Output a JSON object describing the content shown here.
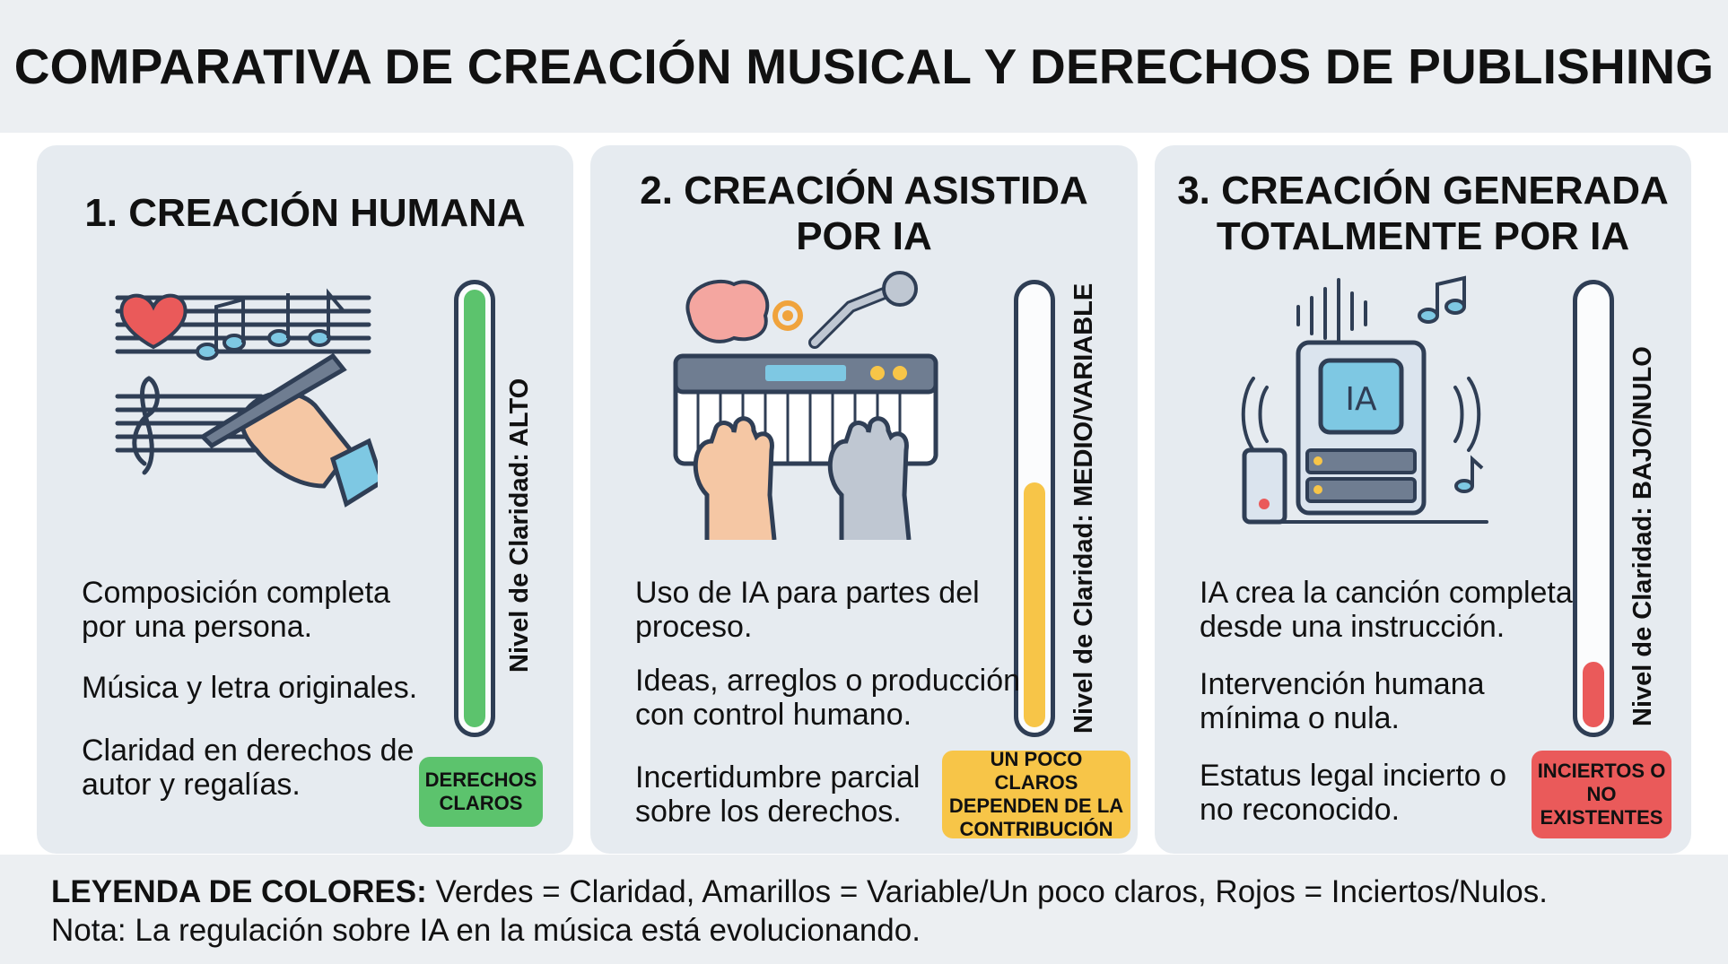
{
  "header": {
    "title": "COMPARATIVA DE CREACIÓN MUSICAL Y DERECHOS DE PUBLISHING"
  },
  "panels": [
    {
      "title_lines": [
        "1. CREACIÓN HUMANA"
      ],
      "illustration": "hand-writing-music-icon",
      "bullets": [
        "Composición completa",
        "por una persona.",
        "Música y letra originales.",
        "Claridad en derechos de",
        "autor y regalías."
      ],
      "gauge": {
        "label": "Nivel de Claridad: ALTO",
        "level": 1.0,
        "color": "#5cc36d"
      },
      "badge": {
        "lines": [
          "DERECHOS",
          "CLAROS"
        ],
        "color": "#5cc36d"
      }
    },
    {
      "title_lines": [
        "2. CREACIÓN ASISTIDA",
        "POR IA"
      ],
      "illustration": "human-and-robot-keyboard-icon",
      "bullets": [
        "Uso de IA para partes del",
        "proceso.",
        "Ideas, arreglos o producción",
        "con control humano.",
        "Incertidumbre parcial",
        "sobre los derechos."
      ],
      "gauge": {
        "label": "Nivel de Claridad: MEDIO/VARIABLE",
        "level": 0.56,
        "color": "#f7c548"
      },
      "badge": {
        "lines": [
          "UN POCO CLAROS",
          "DEPENDEN DE LA",
          "CONTRIBUCIÓN"
        ],
        "color": "#f7c548"
      }
    },
    {
      "title_lines": [
        "3. CREACIÓN GENERADA",
        "TOTALMENTE POR IA"
      ],
      "illustration": "ai-chip-computer-icon",
      "bullets": [
        "IA crea la canción completa",
        "desde una instrucción.",
        "Intervención humana",
        "mínima o nula.",
        "Estatus legal incierto o",
        "no reconocido."
      ],
      "gauge": {
        "label": "Nivel de Claridad: BAJO/NULO",
        "level": 0.15,
        "color": "#ea5a5a"
      },
      "badge": {
        "lines": [
          "INCIERTOS O",
          "NO",
          "EXISTENTES"
        ],
        "color": "#ea5a5a"
      }
    }
  ],
  "footer": {
    "legend_label": "LEYENDA DE COLORES:",
    "legend_text": " Verdes = Claridad, Amarillos = Variable/Un poco claros, Rojos = Inciertos/Nulos.",
    "note": "Nota: La regulación sobre IA en la música está evolucionando."
  }
}
